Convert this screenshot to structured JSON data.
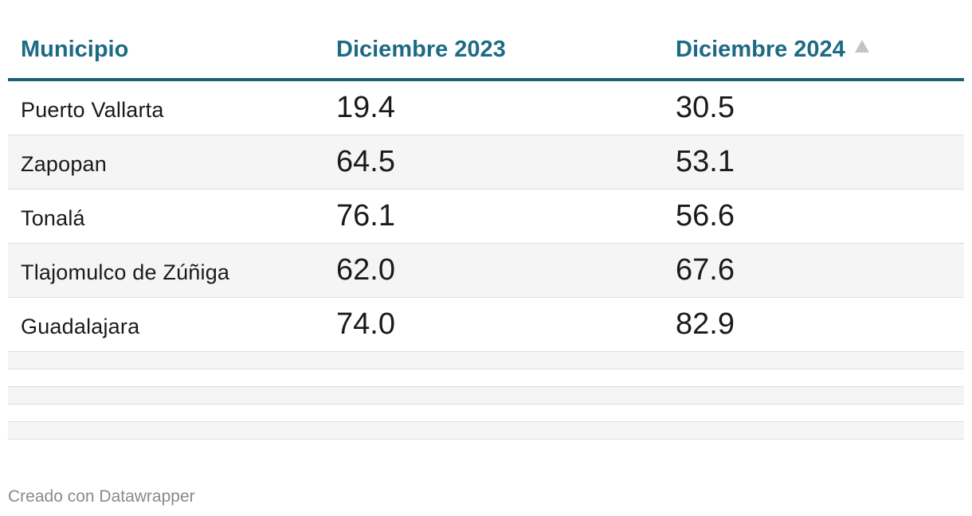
{
  "table": {
    "columns": [
      {
        "label": "Municipio"
      },
      {
        "label": "Diciembre 2023"
      },
      {
        "label": "Diciembre 2024"
      }
    ],
    "sort": {
      "column": "Diciembre 2024",
      "direction": "ascending",
      "icon": "sort-ascending-icon"
    },
    "rows": [
      {
        "municipio": "Puerto Vallarta",
        "dic_2023": "19.4",
        "dic_2024": "30.5"
      },
      {
        "municipio": "Zapopan",
        "dic_2023": "64.5",
        "dic_2024": "53.1"
      },
      {
        "municipio": "Tonalá",
        "dic_2023": "76.1",
        "dic_2024": "56.6"
      },
      {
        "municipio": "Tlajomulco de Zúñiga",
        "dic_2023": "62.0",
        "dic_2024": "67.6"
      },
      {
        "municipio": "Guadalajara",
        "dic_2023": "74.0",
        "dic_2024": "82.9"
      }
    ]
  },
  "footer": {
    "credit": "Creado con Datawrapper"
  },
  "colors": {
    "header_text": "#1d6a85",
    "header_rule": "#1d5f76",
    "stripe": "#f5f5f5",
    "footer_text": "#8a8a8a"
  }
}
